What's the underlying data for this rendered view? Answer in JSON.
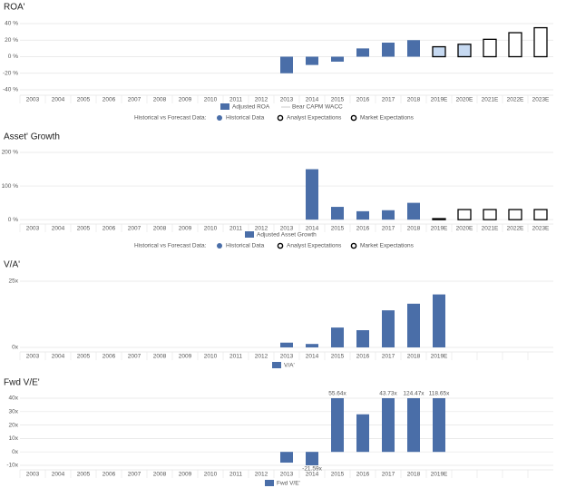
{
  "chart_data": [
    {
      "type": "bar",
      "title": "ROA'",
      "categories": [
        "2003",
        "2004",
        "2005",
        "2006",
        "2007",
        "2008",
        "2009",
        "2010",
        "2011",
        "2012",
        "2013",
        "2014",
        "2015",
        "2016",
        "2017",
        "2018",
        "2019E",
        "2020E",
        "2021E",
        "2022E",
        "2023E"
      ],
      "series": [
        {
          "name": "Historical Data",
          "color": "#4a6ea8",
          "values": [
            null,
            null,
            null,
            null,
            null,
            null,
            null,
            null,
            null,
            null,
            -20,
            -10,
            -6,
            10,
            17,
            20,
            null,
            null,
            null,
            null,
            null
          ]
        },
        {
          "name": "Analyst Expectations",
          "color": "#c6d9f1",
          "outline": "#000000",
          "values": [
            null,
            null,
            null,
            null,
            null,
            null,
            null,
            null,
            null,
            null,
            null,
            null,
            null,
            null,
            null,
            null,
            12,
            15,
            null,
            null,
            null
          ]
        },
        {
          "name": "Market Expectations",
          "color": "#ffffff",
          "outline": "#000000",
          "values": [
            null,
            null,
            null,
            null,
            null,
            null,
            null,
            null,
            null,
            null,
            null,
            null,
            null,
            null,
            null,
            null,
            null,
            null,
            21,
            29,
            35
          ]
        }
      ],
      "measure_label": "Adjusted ROA",
      "benchmark_label": "Bear CAPM WACC",
      "legend": {
        "title": "Historical vs Forecast Data:"
      },
      "ylim": [
        -40,
        40
      ],
      "yticks": [
        {
          "value": -40,
          "label": "-40 %"
        },
        {
          "value": -20,
          "label": "-20 %"
        },
        {
          "value": 0,
          "label": "0 %"
        },
        {
          "value": 20,
          "label": "20 %"
        },
        {
          "value": 40,
          "label": "40 %"
        }
      ],
      "grid": true
    },
    {
      "type": "bar",
      "title": "Asset' Growth",
      "categories": [
        "2003",
        "2004",
        "2005",
        "2006",
        "2007",
        "2008",
        "2009",
        "2010",
        "2011",
        "2012",
        "2013",
        "2014",
        "2015",
        "2016",
        "2017",
        "2018",
        "2019E",
        "2020E",
        "2021E",
        "2022E",
        "2023E"
      ],
      "series": [
        {
          "name": "Historical Data",
          "color": "#4a6ea8",
          "values": [
            null,
            null,
            null,
            null,
            null,
            null,
            null,
            null,
            null,
            null,
            null,
            150,
            38,
            25,
            28,
            50,
            null,
            null,
            null,
            null,
            null
          ]
        },
        {
          "name": "Analyst Expectations",
          "color": "#c6d9f1",
          "outline": "#000000",
          "values": [
            null,
            null,
            null,
            null,
            null,
            null,
            null,
            null,
            null,
            null,
            null,
            null,
            null,
            null,
            null,
            null,
            null,
            null,
            null,
            null,
            null
          ]
        },
        {
          "name": "Market Expectations",
          "color": "#ffffff",
          "outline": "#000000",
          "values": [
            null,
            null,
            null,
            null,
            null,
            null,
            null,
            null,
            null,
            null,
            null,
            null,
            null,
            null,
            null,
            null,
            3,
            30,
            30,
            30,
            30
          ]
        }
      ],
      "measure_label": "Adjusted Asset Growth",
      "legend": {
        "title": "Historical vs Forecast Data:"
      },
      "ylim": [
        -5,
        200
      ],
      "yticks": [
        {
          "value": 0,
          "label": "0 %"
        },
        {
          "value": 100,
          "label": "100 %"
        },
        {
          "value": 200,
          "label": "200 %"
        }
      ],
      "grid": true
    },
    {
      "type": "bar",
      "title": "V/A'",
      "categories": [
        "2003",
        "2004",
        "2005",
        "2006",
        "2007",
        "2008",
        "2009",
        "2010",
        "2011",
        "2012",
        "2013",
        "2014",
        "2015",
        "2016",
        "2017",
        "2018",
        "2019E",
        null,
        null,
        null,
        null
      ],
      "series": [
        {
          "name": "V/A'",
          "color": "#4a6ea8",
          "values": [
            null,
            null,
            null,
            null,
            null,
            null,
            null,
            null,
            null,
            null,
            1.8,
            1.3,
            7.5,
            6.5,
            14,
            16.5,
            20,
            null,
            null,
            null,
            null
          ]
        }
      ],
      "ylim": [
        0,
        25
      ],
      "yticks": [
        {
          "value": 0,
          "label": "0x"
        },
        {
          "value": 25,
          "label": "25x"
        }
      ],
      "grid": true
    },
    {
      "type": "bar",
      "title": "Fwd V/E'",
      "categories": [
        "2003",
        "2004",
        "2005",
        "2006",
        "2007",
        "2008",
        "2009",
        "2010",
        "2011",
        "2012",
        "2013",
        "2014",
        "2015",
        "2016",
        "2017",
        "2018",
        "2019E",
        null,
        null,
        null,
        null
      ],
      "series": [
        {
          "name": "Fwd V/E'",
          "color": "#4a6ea8",
          "values": [
            null,
            null,
            null,
            null,
            null,
            null,
            null,
            null,
            null,
            null,
            -8,
            -21.59,
            55.64,
            28,
            43.73,
            124.47,
            118.65,
            null,
            null,
            null,
            null
          ],
          "value_labels": [
            null,
            null,
            null,
            null,
            null,
            null,
            null,
            null,
            null,
            null,
            null,
            "-21.59x",
            "55.64x",
            null,
            "43.73x",
            "124.47x",
            "118.65x",
            null,
            null,
            null,
            null
          ]
        }
      ],
      "ylim": [
        -10,
        40
      ],
      "yticks": [
        {
          "value": -10,
          "label": "-10x"
        },
        {
          "value": 0,
          "label": "0x"
        },
        {
          "value": 10,
          "label": "10x"
        },
        {
          "value": 20,
          "label": "20x"
        },
        {
          "value": 30,
          "label": "30x"
        },
        {
          "value": 40,
          "label": "40x"
        }
      ],
      "grid": true
    }
  ]
}
